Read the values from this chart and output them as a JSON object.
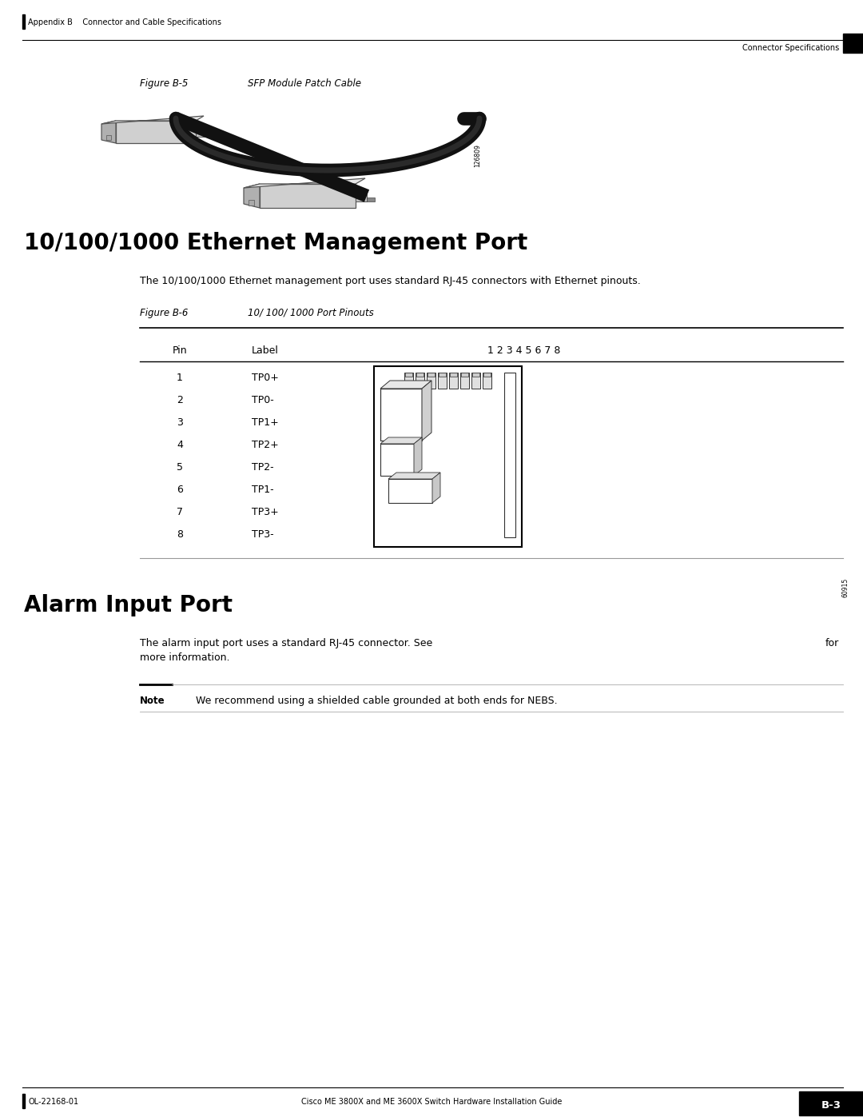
{
  "bg_color": "#ffffff",
  "header_left": "Appendix B    Connector and Cable Specifications",
  "header_right": "Connector Specifications",
  "figure_b5_label": "Figure B-5",
  "figure_b5_title": "SFP Module Patch Cable",
  "figure_b5_id": "126809",
  "section1_title": "10/100/1000 Ethernet Management Port",
  "section1_body": "The 10/100/1000 Ethernet management port uses standard RJ-45 connectors with Ethernet pinouts.",
  "figure_b6_label": "Figure B-6",
  "figure_b6_title": "10/ 100/ 1000 Port Pinouts",
  "figure_b6_id": "60915",
  "table_header_pin": "Pin",
  "table_header_label": "Label",
  "table_header_pins": "1 2 3 4 5 6 7 8",
  "pin_data": [
    [
      "1",
      "TP0+"
    ],
    [
      "2",
      "TP0-"
    ],
    [
      "3",
      "TP1+"
    ],
    [
      "4",
      "TP2+"
    ],
    [
      "5",
      "TP2-"
    ],
    [
      "6",
      "TP1-"
    ],
    [
      "7",
      "TP3+"
    ],
    [
      "8",
      "TP3-"
    ]
  ],
  "section2_title": "Alarm Input Port",
  "section2_body1": "The alarm input port uses a standard RJ-45 connector. See",
  "section2_body2": "for",
  "section2_body3": "more information.",
  "note_label": "Note",
  "note_text": "We recommend using a shielded cable grounded at both ends for NEBS.",
  "footer_left": "OL-22168-01",
  "footer_right": "Cisco ME 3800X and ME 3600X Switch Hardware Installation Guide",
  "footer_page": "B-3"
}
